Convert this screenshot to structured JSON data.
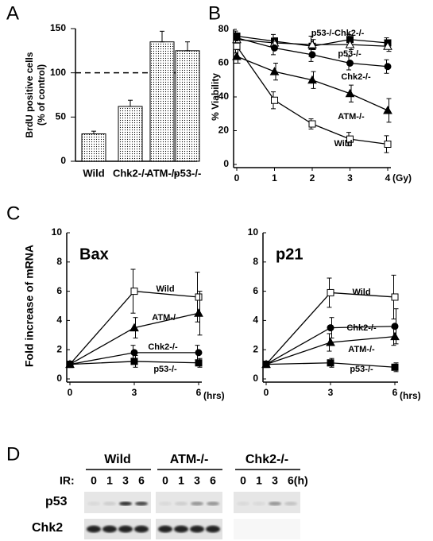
{
  "chart_data": [
    {
      "type": "bar",
      "panel": "A",
      "categories": [
        "Wild",
        "Chk2-/-",
        "ATM-/-",
        "p53-/-"
      ],
      "values": [
        31,
        62,
        135,
        125
      ],
      "errors": [
        3,
        7,
        12,
        10
      ],
      "ylim": [
        0,
        150
      ],
      "yticks": [
        0,
        50,
        100,
        150
      ],
      "ylabel": [
        "BrdU positive cells",
        "(% of control)"
      ],
      "reference_line": 100,
      "color": "#000000"
    },
    {
      "type": "line",
      "panel": "B",
      "x": [
        0,
        1,
        2,
        3,
        4
      ],
      "xlim": [
        0,
        4
      ],
      "xticks": [
        0,
        1,
        2,
        3,
        4
      ],
      "xlabel": "(Gy)",
      "ylim": [
        0,
        80
      ],
      "yticks": [
        0,
        20,
        40,
        60,
        80
      ],
      "ylabel": "% Viability",
      "series": [
        {
          "name": "p53-/-Chk2-/-",
          "marker": "square-filled",
          "color": "#000000",
          "values": [
            76,
            73,
            70,
            74,
            72
          ],
          "errors": [
            3,
            4,
            6,
            3,
            3
          ]
        },
        {
          "name": "p53-/-",
          "marker": "triangle-open",
          "color": "#000000",
          "values": [
            74,
            72,
            71,
            71,
            70
          ],
          "errors": [
            3,
            3,
            3,
            3,
            3
          ]
        },
        {
          "name": "Chk2-/-",
          "marker": "circle-filled",
          "color": "#000000",
          "values": [
            75,
            69,
            65,
            60,
            58
          ],
          "errors": [
            3,
            4,
            4,
            4,
            4
          ]
        },
        {
          "name": "ATM-/-",
          "marker": "triangle-filled",
          "color": "#000000",
          "values": [
            64,
            55,
            50,
            42,
            32
          ],
          "errors": [
            4,
            5,
            5,
            5,
            7
          ]
        },
        {
          "name": "Wild",
          "marker": "square-open",
          "color": "#000000",
          "values": [
            70,
            38,
            24,
            15,
            12
          ],
          "errors": [
            4,
            5,
            3,
            4,
            5
          ]
        }
      ]
    },
    {
      "type": "line",
      "panel": "C",
      "title": "Bax",
      "x": [
        0,
        3,
        6
      ],
      "xlim": [
        0,
        6
      ],
      "xticks": [
        0,
        3,
        6
      ],
      "xlabel": "(hrs)",
      "ylim": [
        0,
        10
      ],
      "yticks": [
        0,
        2,
        4,
        6,
        8,
        10
      ],
      "ylabel": "Fold increase of mRNA",
      "series": [
        {
          "name": "Wild",
          "marker": "square-open",
          "color": "#000000",
          "values": [
            1,
            6.0,
            5.6
          ],
          "errors": [
            0,
            1.5,
            1.7
          ]
        },
        {
          "name": "ATM-/-",
          "marker": "triangle-filled",
          "color": "#000000",
          "values": [
            1,
            3.5,
            4.5
          ],
          "errors": [
            0,
            0.7,
            1.5
          ]
        },
        {
          "name": "Chk2-/-",
          "marker": "circle-filled",
          "color": "#000000",
          "values": [
            1,
            1.8,
            1.8
          ],
          "errors": [
            0,
            0.5,
            0.5
          ]
        },
        {
          "name": "p53-/-",
          "marker": "square-filled",
          "color": "#000000",
          "values": [
            1,
            1.2,
            1.1
          ],
          "errors": [
            0,
            0.4,
            0.3
          ]
        }
      ]
    },
    {
      "type": "line",
      "title": "p21",
      "x": [
        0,
        3,
        6
      ],
      "xlim": [
        0,
        6
      ],
      "xticks": [
        0,
        3,
        6
      ],
      "xlabel": "(hrs)",
      "ylim": [
        0,
        10
      ],
      "yticks": [
        0,
        2,
        4,
        6,
        8,
        10
      ],
      "series": [
        {
          "name": "Wild",
          "marker": "square-open",
          "color": "#000000",
          "values": [
            1,
            5.9,
            5.6
          ],
          "errors": [
            0,
            1.0,
            1.5
          ]
        },
        {
          "name": "Chk2-/-",
          "marker": "circle-filled",
          "color": "#000000",
          "values": [
            1,
            3.5,
            3.6
          ],
          "errors": [
            0,
            0.7,
            1.2
          ]
        },
        {
          "name": "ATM-/-",
          "marker": "triangle-filled",
          "color": "#000000",
          "values": [
            1,
            2.5,
            2.9
          ],
          "errors": [
            0,
            0.6,
            0.6
          ]
        },
        {
          "name": "p53-/-",
          "marker": "square-filled",
          "color": "#000000",
          "values": [
            1,
            1.1,
            0.8
          ],
          "errors": [
            0,
            0.3,
            0.3
          ]
        }
      ]
    }
  ],
  "blot": {
    "panel": "D",
    "ir_label": "IR:",
    "row_labels": [
      "p53",
      "Chk2"
    ],
    "groups": [
      {
        "name": "Wild",
        "lanes": [
          "0",
          "1",
          "3",
          "6"
        ]
      },
      {
        "name": "ATM-/-",
        "lanes": [
          "0",
          "1",
          "3",
          "6"
        ]
      },
      {
        "name": "Chk2-/-",
        "lanes": [
          "0",
          "1",
          "3",
          "6(h)"
        ]
      }
    ]
  }
}
